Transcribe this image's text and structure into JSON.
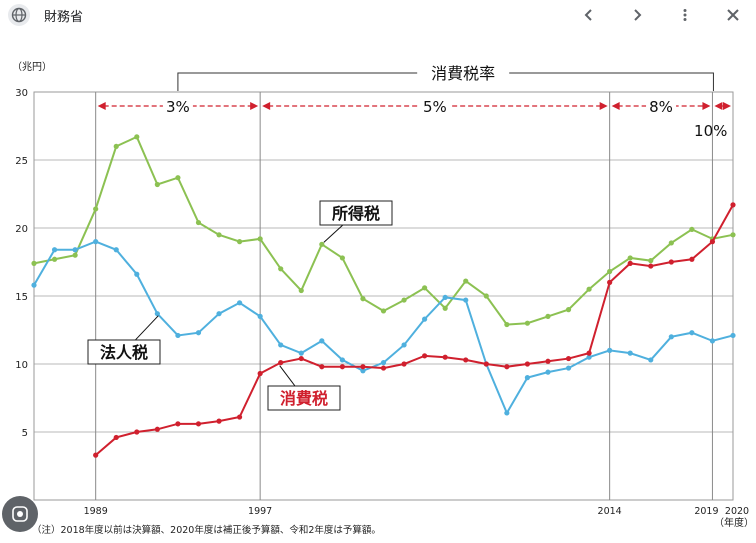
{
  "topbar": {
    "site_name": "財務省",
    "icons": [
      "globe-icon",
      "chevron-left-icon",
      "chevron-right-icon",
      "more-vert-icon",
      "close-icon"
    ]
  },
  "chart_data": {
    "type": "line",
    "y_unit_label": "（兆円）",
    "x_unit_label": "（年度）",
    "note": "（注）2018年度以前は決算額、2020年度は補正後予算額、令和2年度は予算額。",
    "ylim": [
      0,
      30
    ],
    "y_ticks": [
      0,
      5,
      10,
      15,
      20,
      25,
      30
    ],
    "xlim": [
      1986,
      2020
    ],
    "x_tick_labels": [
      1989,
      1997,
      2014,
      2019,
      2020
    ],
    "grid": true,
    "vertical_lines": [
      1989,
      1997,
      2014,
      2019
    ],
    "tax_rate_header": "消費税率",
    "tax_rate_periods": [
      {
        "label": "3%",
        "start": 1989,
        "end": 1997
      },
      {
        "label": "5%",
        "start": 1997,
        "end": 2014
      },
      {
        "label": "8%",
        "start": 2014,
        "end": 2019
      },
      {
        "label": "10%",
        "start": 2019,
        "end": 2020
      }
    ],
    "series": [
      {
        "name": "所得税",
        "color": "#8cc152",
        "x": [
          1986,
          1987,
          1988,
          1989,
          1990,
          1991,
          1992,
          1993,
          1994,
          1995,
          1996,
          1997,
          1998,
          1999,
          2000,
          2001,
          2002,
          2003,
          2004,
          2005,
          2006,
          2007,
          2008,
          2009,
          2010,
          2011,
          2012,
          2013,
          2014,
          2015,
          2016,
          2017,
          2018,
          2019,
          2020
        ],
        "values": [
          17.4,
          17.7,
          18.0,
          21.4,
          26.0,
          26.7,
          23.2,
          23.7,
          20.4,
          19.5,
          19.0,
          19.2,
          17.0,
          15.4,
          18.8,
          17.8,
          14.8,
          13.9,
          14.7,
          15.6,
          14.1,
          16.1,
          15.0,
          12.9,
          13.0,
          13.5,
          14.0,
          15.5,
          16.8,
          17.8,
          17.6,
          18.9,
          19.9,
          19.2,
          19.5
        ]
      },
      {
        "name": "法人税",
        "color": "#4fb0de",
        "x": [
          1986,
          1987,
          1988,
          1989,
          1990,
          1991,
          1992,
          1993,
          1994,
          1995,
          1996,
          1997,
          1998,
          1999,
          2000,
          2001,
          2002,
          2003,
          2004,
          2005,
          2006,
          2007,
          2008,
          2009,
          2010,
          2011,
          2012,
          2013,
          2014,
          2015,
          2016,
          2017,
          2018,
          2019,
          2020
        ],
        "values": [
          15.8,
          18.4,
          18.4,
          19.0,
          18.4,
          16.6,
          13.7,
          12.1,
          12.3,
          13.7,
          14.5,
          13.5,
          11.4,
          10.8,
          11.7,
          10.3,
          9.5,
          10.1,
          11.4,
          13.3,
          14.9,
          14.7,
          10.0,
          6.4,
          9.0,
          9.4,
          9.7,
          10.5,
          11.0,
          10.8,
          10.3,
          12.0,
          12.3,
          11.7,
          12.1
        ]
      },
      {
        "name": "消費税",
        "color": "#d0202e",
        "x": [
          1989,
          1990,
          1991,
          1992,
          1993,
          1994,
          1995,
          1996,
          1997,
          1998,
          1999,
          2000,
          2001,
          2002,
          2003,
          2004,
          2005,
          2006,
          2007,
          2008,
          2009,
          2010,
          2011,
          2012,
          2013,
          2014,
          2015,
          2016,
          2017,
          2018,
          2019,
          2020
        ],
        "values": [
          3.3,
          4.6,
          5.0,
          5.2,
          5.6,
          5.6,
          5.8,
          6.1,
          9.3,
          10.1,
          10.4,
          9.8,
          9.8,
          9.8,
          9.7,
          10.0,
          10.6,
          10.5,
          10.3,
          10.0,
          9.8,
          10.0,
          10.2,
          10.4,
          10.8,
          16.0,
          17.4,
          17.2,
          17.5,
          17.7,
          19.0,
          21.7
        ]
      }
    ]
  }
}
